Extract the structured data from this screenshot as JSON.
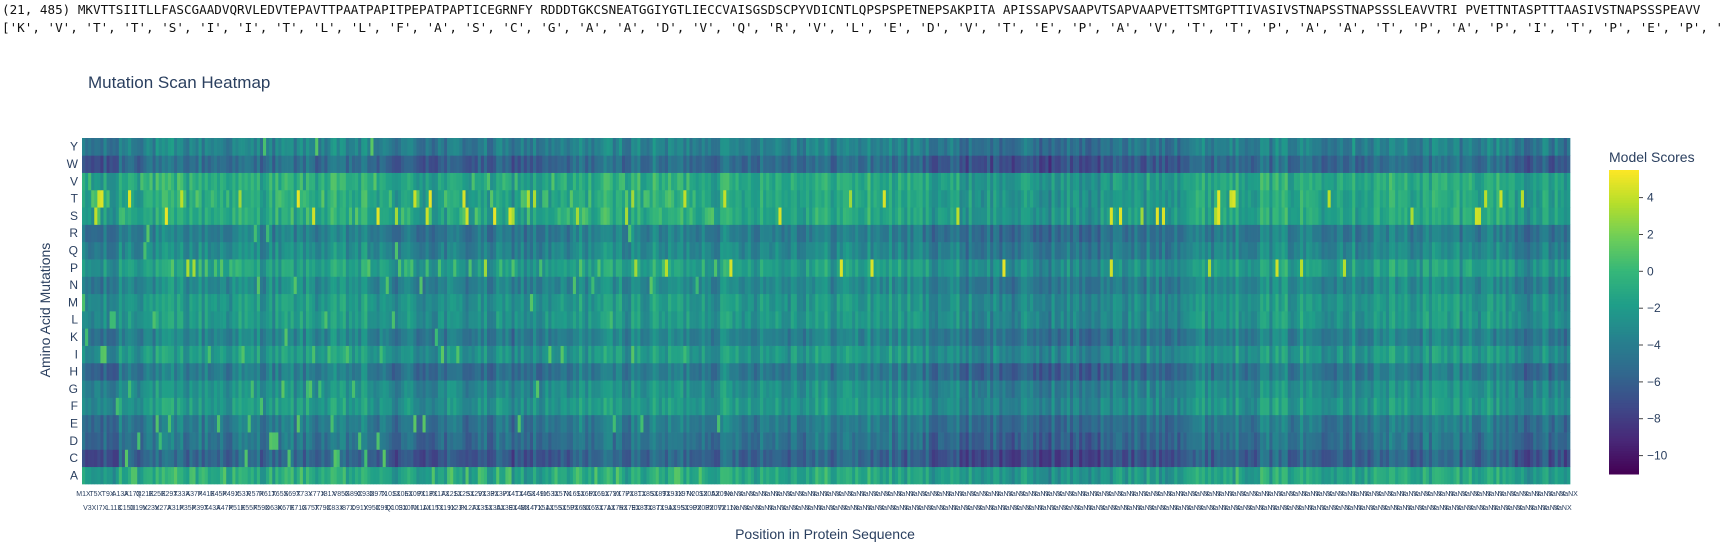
{
  "console": {
    "line1": "(21, 485) MKVTTSIITLLFASCGAADVQRVLEDVTEPAVTTPAATPAPITPEPATPAPTICEGRNFY RDDDTGKCSNEATGGIYGTLIECCVAISGSDSCPYVDICNTLQPSPSPETNEPSAKPITA APISSAPVSAAPVTSAPVAAPVETTSMTGPTTIVASIVSTNAPSSTNAPSSSLEAVVTRI PVETTNTASPTTTAASIVSTNAPSSSPEAVV",
    "line2": "['K', 'V', 'T', 'T', 'S', 'I', 'I', 'T', 'L', 'L', 'F', 'A', 'S', 'C', 'G', 'A', 'A', 'D', 'V', 'Q', 'R', 'V', 'L', 'E', 'D', 'V', 'T', 'E', 'P', 'A', 'V', 'T', 'T', 'P', 'A', 'A', 'T', 'P', 'A', 'P', 'I', 'T', 'P', 'E', 'P', 'A', 'T', 'P', 'A', 'P', 'T', 'I', 'C', 'E', 'G', 'R', 'N', 'F', 'Y', 'R', 'D', 'D', 'D', 'T', 'G', 'K', 'C', 'S', 'N', 'E', 'A', 'T'"
  },
  "chart_data": {
    "type": "heatmap",
    "title": "Mutation Scan Heatmap",
    "xlabel": "Position in Protein Sequence",
    "ylabel": "Amino Acid Mutations",
    "y_categories": [
      "A",
      "C",
      "D",
      "E",
      "F",
      "G",
      "H",
      "I",
      "K",
      "L",
      "M",
      "N",
      "P",
      "Q",
      "R",
      "S",
      "T",
      "V",
      "W",
      "Y"
    ],
    "x_count": 485,
    "sequence": "MKVTTSIITLLFASCGAADVQRVLEDVTEPAVTTPAATPAPITPEPATPAPTICEGRNFYRDDDTGKCSNEATGGIYGTLIECCVAISGSDSCPYVDICNTLQPSPSPETNEPSAKPITAAPISSAPVSAAPVTSAPVAAPVETTSMTGPTTIVASIVSTNAPSSTNAPSSSLEAVVTRIPVETTNTASPTTTAASIVSTNAPSSSPEAVV",
    "colorbar": {
      "title": "Model Scores",
      "ticks": [
        4,
        2,
        0,
        -2,
        -4,
        -6,
        -8,
        -10
      ],
      "range": [
        -11,
        5.5
      ],
      "colorscale": [
        "#440154",
        "#482878",
        "#3e4989",
        "#31688e",
        "#26828e",
        "#1f9e89",
        "#35b779",
        "#6ece58",
        "#b5de2b",
        "#fde725"
      ]
    },
    "row_mean_scores": {
      "A": -1.0,
      "C": -5.5,
      "D": -4.5,
      "E": -4.0,
      "F": -2.0,
      "G": -2.5,
      "H": -4.0,
      "I": -2.0,
      "K": -3.5,
      "L": -2.0,
      "M": -2.0,
      "N": -3.0,
      "P": -1.5,
      "Q": -3.0,
      "R": -3.8,
      "S": -1.0,
      "T": -1.0,
      "V": -0.8,
      "W": -5.0,
      "Y": -3.5
    }
  }
}
